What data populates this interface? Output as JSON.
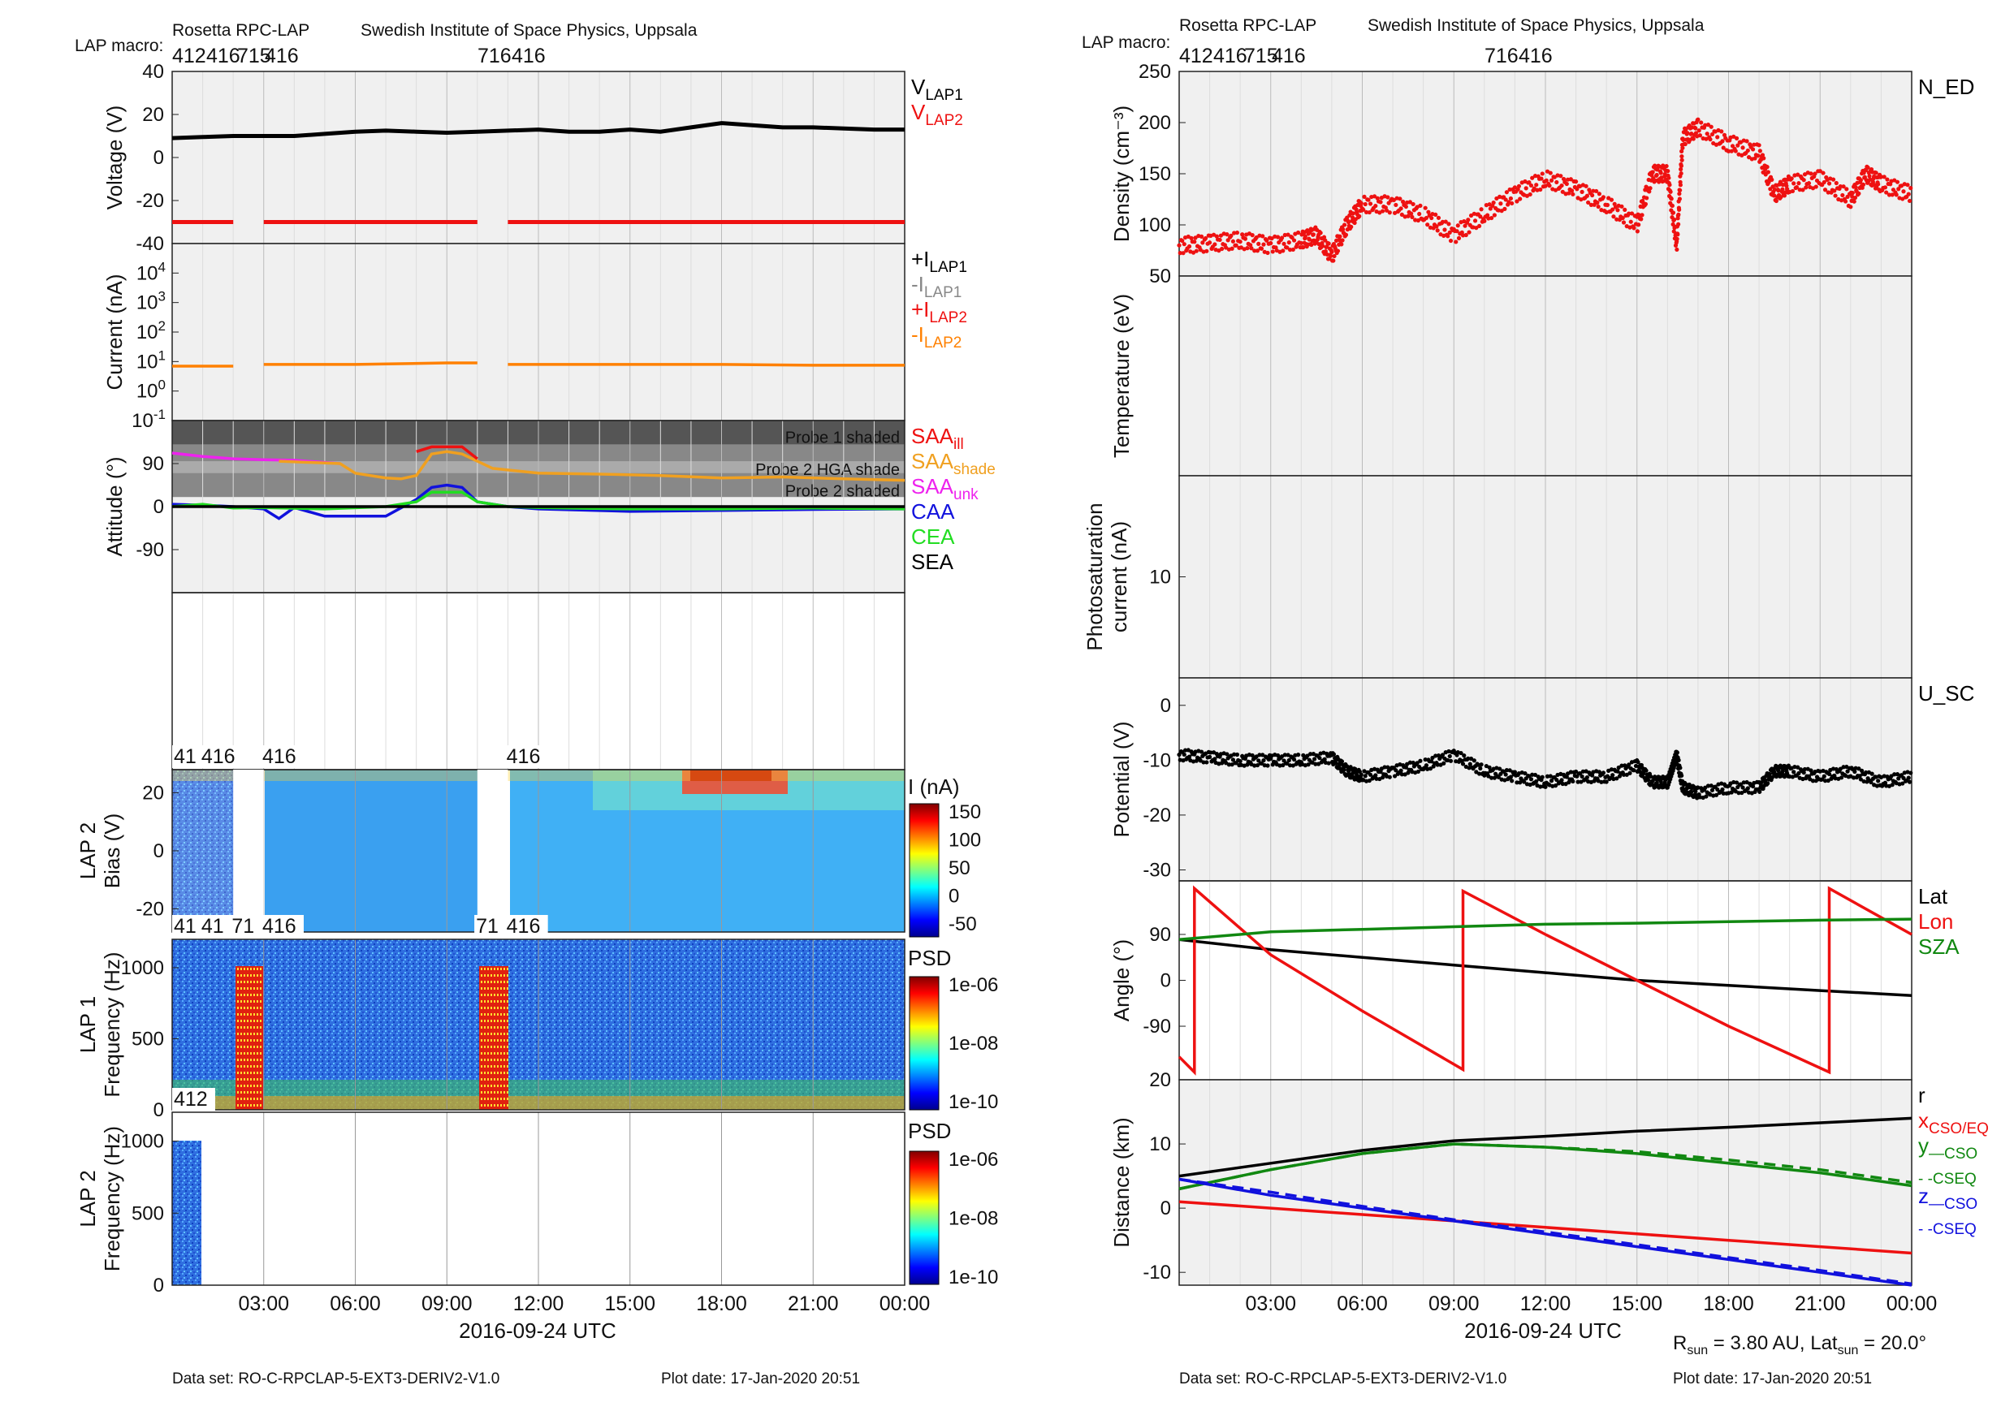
{
  "left_header": {
    "title": "Rosetta RPC-LAP",
    "institute": "Swedish Institute of Space Physics, Uppsala",
    "macro_label": "LAP macro:",
    "macros": [
      "412",
      "416",
      "715",
      "416",
      "716",
      "416"
    ]
  },
  "right_header": {
    "title": "Rosetta RPC-LAP",
    "institute": "Swedish Institute of Space Physics, Uppsala",
    "macro_label": "LAP macro:",
    "macros": [
      "412",
      "416",
      "715",
      "416",
      "716",
      "416"
    ]
  },
  "left_footer": {
    "dataset": "Data set: RO-C-RPCLAP-5-EXT3-DERIV2-V1.0",
    "plot_date": "Plot date: 17-Jan-2020 20:51"
  },
  "right_footer": {
    "dataset": "Data set: RO-C-RPCLAP-5-EXT3-DERIV2-V1.0",
    "plot_date": "Plot date: 17-Jan-2020 20:51",
    "rsun_note": "R_sun = 3.80 AU, Lat_sun = 20.0°"
  },
  "xaxis": {
    "label": "2016-09-24 UTC",
    "ticks": [
      "03:00",
      "06:00",
      "09:00",
      "12:00",
      "15:00",
      "18:00",
      "21:00",
      "00:00"
    ]
  },
  "colors": {
    "black": "#000000",
    "red": "#ee1111",
    "orange": "#ff8000",
    "gray": "#888888",
    "gold": "#f0a020",
    "magenta": "#ee22ee",
    "blue": "#1111dd",
    "green": "#22dd22",
    "darkgreen": "#118811",
    "panel_bg": "#f0f0f0"
  },
  "chart_data": [
    {
      "type": "line",
      "title": "",
      "ylabel": "Voltage (V)",
      "ylim": [
        -40,
        40
      ],
      "yticks": [
        "40",
        "20",
        "0",
        "-20",
        "-40"
      ],
      "legend": [
        {
          "name": "V",
          "sub": "LAP1",
          "color": "#000000"
        },
        {
          "name": "V",
          "sub": "LAP2",
          "color": "#ee1111"
        }
      ],
      "series": [
        {
          "name": "V_LAP1",
          "x": [
            0,
            1,
            2,
            3,
            4,
            5,
            6,
            7,
            8,
            9,
            10,
            11,
            12,
            13,
            14,
            15,
            16,
            17,
            18,
            19,
            20,
            21,
            22,
            23,
            24
          ],
          "y": [
            9,
            9.5,
            10,
            10,
            10,
            11,
            12,
            12.5,
            12,
            11.5,
            12,
            12.5,
            13,
            12,
            12,
            13,
            12,
            14,
            16,
            15,
            14,
            14,
            13.5,
            13,
            13
          ]
        },
        {
          "name": "V_LAP2",
          "x": [
            0,
            2,
            3,
            10,
            11,
            24
          ],
          "y": [
            -30,
            -30,
            -30,
            -30,
            -30,
            -30
          ],
          "gaps": [
            [
              2,
              3
            ],
            [
              10,
              11
            ]
          ]
        }
      ]
    },
    {
      "type": "line",
      "title": "",
      "ylabel": "Current (nA)",
      "yscale": "log",
      "ylim": [
        0.1,
        100000
      ],
      "yticks": [
        "10^4",
        "10^3",
        "10^2",
        "10^1",
        "10^0",
        "10^-1"
      ],
      "legend": [
        {
          "name": "+I",
          "sub": "LAP1",
          "color": "#000000"
        },
        {
          "name": "-I",
          "sub": "LAP1",
          "color": "#888888"
        },
        {
          "name": "+I",
          "sub": "LAP2",
          "color": "#ee1111"
        },
        {
          "name": "-I",
          "sub": "LAP2",
          "color": "#ff8000"
        }
      ],
      "series": [
        {
          "name": "-I_LAP2",
          "x": [
            0,
            2,
            3,
            6,
            9,
            10,
            11,
            15,
            18,
            21,
            24
          ],
          "y": [
            7,
            7,
            8,
            8,
            9,
            9,
            8,
            8,
            8,
            7.5,
            7.5
          ],
          "gaps": [
            [
              2,
              3
            ],
            [
              10,
              11
            ]
          ]
        }
      ]
    },
    {
      "type": "line",
      "title": "",
      "ylabel": "Attitude (°)",
      "ylim": [
        -180,
        180
      ],
      "yticks": [
        "90",
        "0",
        "-90"
      ],
      "bands": [
        {
          "label": "Probe 1 shaded",
          "y": [
            130,
            180
          ]
        },
        {
          "label": "Probe 2 HGA shade",
          "y": [
            70,
            90
          ]
        },
        {
          "label": "Probe 2 shaded",
          "y": [
            20,
            130
          ]
        }
      ],
      "legend": [
        {
          "name": "SAA",
          "sub": "ill",
          "color": "#ee1111"
        },
        {
          "name": "SAA",
          "sub": "shade",
          "color": "#f0a020"
        },
        {
          "name": "SAA",
          "sub": "unk",
          "color": "#ee22ee"
        },
        {
          "name": "CAA",
          "sub": "",
          "color": "#1111dd"
        },
        {
          "name": "CEA",
          "sub": "",
          "color": "#22dd22"
        },
        {
          "name": "SEA",
          "sub": "",
          "color": "#000000"
        }
      ],
      "series": [
        {
          "name": "SAA_unk",
          "x": [
            0,
            1,
            2,
            3,
            4,
            5.5
          ],
          "y": [
            112,
            105,
            100,
            98,
            97,
            90
          ]
        },
        {
          "name": "SAA_shade",
          "x": [
            3.5,
            5.5,
            6,
            7,
            7.5,
            8,
            8.5,
            9,
            9.5,
            10,
            10.5,
            12,
            14,
            16,
            18,
            20,
            22,
            24
          ],
          "y": [
            95,
            90,
            70,
            60,
            58,
            65,
            110,
            115,
            110,
            95,
            80,
            70,
            68,
            65,
            60,
            62,
            58,
            55
          ]
        },
        {
          "name": "SAA_ill",
          "x": [
            8,
            8.5,
            9,
            9.5,
            10
          ],
          "y": [
            115,
            125,
            125,
            125,
            100
          ]
        },
        {
          "name": "CAA",
          "x": [
            0,
            1,
            2,
            3,
            3.5,
            4,
            5,
            7,
            8,
            8.5,
            9,
            9.5,
            10,
            11,
            12,
            15,
            18,
            21,
            24
          ],
          "y": [
            5,
            3,
            0,
            -5,
            -25,
            -2,
            -20,
            -20,
            15,
            40,
            45,
            40,
            10,
            0,
            -5,
            -10,
            -8,
            -6,
            -5
          ]
        },
        {
          "name": "CEA",
          "x": [
            0,
            1,
            2,
            3,
            5,
            7,
            8,
            8.5,
            9,
            9.5,
            10,
            11,
            12,
            15,
            18,
            21,
            24
          ],
          "y": [
            0,
            5,
            -3,
            -2,
            -5,
            0,
            10,
            30,
            30,
            30,
            10,
            0,
            -2,
            -5,
            -5,
            -3,
            -5
          ]
        },
        {
          "name": "SEA",
          "x": [
            0,
            24
          ],
          "y": [
            0,
            0
          ]
        }
      ]
    },
    {
      "type": "heatmap",
      "title": "",
      "ylabel": "LAP 2 Bias (V)",
      "ylim": [
        -28,
        28
      ],
      "yticks": [
        "20",
        "0",
        "-20"
      ],
      "colorbar": {
        "label": "I (nA)",
        "ticks": [
          "150",
          "100",
          "50",
          "0",
          "-50"
        ]
      },
      "macro_labels": [
        "41",
        "416",
        "416",
        "416"
      ],
      "gaps": [
        [
          2,
          3
        ],
        [
          10,
          11
        ]
      ]
    },
    {
      "type": "heatmap",
      "title": "",
      "ylabel": "LAP 1 Frequency (Hz)",
      "ylim": [
        0,
        1200
      ],
      "yticks": [
        "1000",
        "500",
        "0"
      ],
      "colorbar": {
        "label": "PSD",
        "ticks": [
          "1e-06",
          "1e-08",
          "1e-10"
        ]
      },
      "macro_labels": [
        "41",
        "41",
        "71",
        "416",
        "71",
        "416"
      ]
    },
    {
      "type": "heatmap",
      "title": "",
      "ylabel": "LAP 2 Frequency (Hz)",
      "ylim": [
        0,
        1200
      ],
      "yticks": [
        "1000",
        "500",
        "0"
      ],
      "colorbar": {
        "label": "PSD",
        "ticks": [
          "1e-06",
          "1e-08",
          "1e-10"
        ]
      },
      "macro_labels": [
        "412"
      ],
      "data_extent_hours": [
        0,
        1
      ]
    },
    {
      "type": "scatter",
      "title": "",
      "ylabel": "Density (cm⁻³)",
      "ylim": [
        50,
        250
      ],
      "yticks": [
        "250",
        "200",
        "150",
        "100",
        "50"
      ],
      "legend": [
        {
          "name": "N_ED",
          "sub": "",
          "color": "#000000"
        }
      ],
      "series": [
        {
          "name": "N_ED",
          "x": [
            0,
            1,
            2,
            3,
            4,
            4.5,
            5,
            5.5,
            6,
            7,
            8,
            9,
            10,
            11,
            12,
            13,
            14,
            15,
            15.5,
            16,
            16.3,
            16.5,
            17,
            18,
            19,
            19.5,
            20,
            21,
            22,
            22.5,
            23,
            24
          ],
          "y": [
            80,
            82,
            85,
            80,
            85,
            90,
            70,
            100,
            120,
            120,
            110,
            90,
            110,
            130,
            145,
            135,
            120,
            100,
            150,
            150,
            80,
            185,
            195,
            180,
            170,
            130,
            140,
            145,
            125,
            150,
            140,
            130
          ]
        }
      ]
    },
    {
      "type": "line",
      "title": "",
      "ylabel": "Temperature (eV)",
      "ylim": [
        0,
        10
      ],
      "yticks": [],
      "series": []
    },
    {
      "type": "line",
      "title": "",
      "ylabel": "Photosaturation current (nA)",
      "ylim": [
        0,
        20
      ],
      "yticks": [
        "10"
      ],
      "series": []
    },
    {
      "type": "scatter",
      "title": "",
      "ylabel": "Potential (V)",
      "ylim": [
        -32,
        5
      ],
      "yticks": [
        "0",
        "-10",
        "-20",
        "-30"
      ],
      "legend": [
        {
          "name": "U_SC",
          "sub": "",
          "color": "#000000"
        }
      ],
      "series": [
        {
          "name": "U_SC",
          "x": [
            0,
            1,
            2,
            3,
            4,
            5,
            5.5,
            6,
            7,
            8,
            9,
            10,
            11,
            12,
            13,
            14,
            15,
            15.5,
            16,
            16.3,
            16.5,
            17,
            18,
            19,
            19.5,
            20,
            21,
            22,
            23,
            24
          ],
          "y": [
            -9,
            -9.5,
            -10,
            -10,
            -10,
            -9.5,
            -12,
            -13,
            -12,
            -11,
            -9,
            -12,
            -13,
            -14,
            -13,
            -13,
            -11,
            -14,
            -14,
            -9,
            -15,
            -16,
            -15,
            -15,
            -12,
            -12,
            -13,
            -12,
            -14,
            -13
          ]
        }
      ]
    },
    {
      "type": "line",
      "title": "",
      "ylabel": "Angle (°)",
      "ylim": [
        -195,
        195
      ],
      "yticks": [
        "90",
        "0",
        "-90"
      ],
      "legend": [
        {
          "name": "Lat",
          "sub": "",
          "color": "#000000"
        },
        {
          "name": "Lon",
          "sub": "",
          "color": "#ee1111"
        },
        {
          "name": "SZA",
          "sub": "",
          "color": "#118811"
        }
      ],
      "series": [
        {
          "name": "Lat",
          "x": [
            0,
            3,
            6,
            9,
            12,
            15,
            18,
            21,
            24
          ],
          "y": [
            80,
            60,
            45,
            30,
            15,
            0,
            -10,
            -20,
            -30
          ]
        },
        {
          "name": "Lon",
          "x": [
            0,
            0.5,
            0.5,
            3,
            6,
            9.3,
            9.3,
            12,
            15,
            18,
            21.3,
            21.3,
            24
          ],
          "y": [
            -150,
            -180,
            180,
            50,
            -60,
            -175,
            175,
            90,
            0,
            -90,
            -180,
            180,
            90
          ]
        },
        {
          "name": "SZA",
          "x": [
            0,
            3,
            6,
            9,
            12,
            15,
            18,
            21,
            24
          ],
          "y": [
            80,
            95,
            100,
            105,
            110,
            112,
            115,
            118,
            120
          ]
        }
      ]
    },
    {
      "type": "line",
      "title": "",
      "ylabel": "Distance (km)",
      "ylim": [
        -12,
        20
      ],
      "yticks": [
        "20",
        "10",
        "0",
        "-10"
      ],
      "legend": [
        {
          "name": "r",
          "sub": "",
          "color": "#000000"
        },
        {
          "name": "x",
          "sub": "CSO/EQ",
          "color": "#ee1111"
        },
        {
          "name": "y",
          "sub": "—CSO",
          "color": "#118811"
        },
        {
          "name": "",
          "sub": "- -CSEQ",
          "color": "#118811"
        },
        {
          "name": "z",
          "sub": "—CSO",
          "color": "#1111dd"
        },
        {
          "name": "",
          "sub": "- -CSEQ",
          "color": "#1111dd"
        }
      ],
      "series": [
        {
          "name": "r",
          "x": [
            0,
            3,
            6,
            9,
            12,
            15,
            18,
            21,
            24
          ],
          "y": [
            5,
            7,
            9,
            10.5,
            11.2,
            12,
            12.6,
            13.3,
            14
          ]
        },
        {
          "name": "x_CSO/EQ",
          "x": [
            0,
            3,
            6,
            9,
            12,
            15,
            18,
            21,
            24
          ],
          "y": [
            1,
            0,
            -1,
            -2,
            -3,
            -4,
            -5,
            -6,
            -7
          ]
        },
        {
          "name": "y_CSO",
          "x": [
            0,
            3,
            6,
            9,
            12,
            15,
            18,
            21,
            24
          ],
          "y": [
            3,
            6,
            8.5,
            10,
            9.5,
            8.5,
            7,
            5.5,
            3.5
          ]
        },
        {
          "name": "y_CSEQ",
          "x": [
            0,
            3,
            6,
            9,
            12,
            15,
            18,
            21,
            24
          ],
          "y": [
            3,
            6,
            8.5,
            10,
            9.5,
            8.8,
            7.5,
            6,
            4
          ]
        },
        {
          "name": "z_CSO",
          "x": [
            0,
            3,
            6,
            9,
            12,
            15,
            18,
            21,
            24
          ],
          "y": [
            4.5,
            2,
            0,
            -2,
            -4,
            -6,
            -8,
            -10,
            -12
          ]
        },
        {
          "name": "z_CSEQ",
          "x": [
            0,
            3,
            6,
            9,
            12,
            15,
            18,
            21,
            24
          ],
          "y": [
            4.5,
            2.5,
            0.3,
            -1.8,
            -3.7,
            -5.7,
            -7.7,
            -9.7,
            -11.8
          ]
        }
      ]
    }
  ]
}
